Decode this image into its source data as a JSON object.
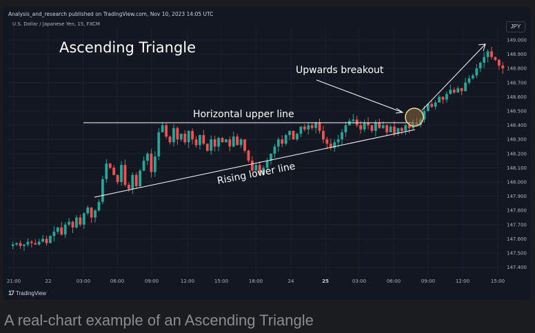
{
  "header": {
    "publish_note": "Analysis_and_research published on TradingView.com, Nov 10, 2023 14:05 UTC",
    "symbol": "U.S. Dollar / Japanese Yen, 15, FXCM",
    "currency": "JPY"
  },
  "footer": {
    "brand": "TradingView"
  },
  "caption": "A real-chart example of an Ascending Triangle",
  "colors": {
    "background": "#131722",
    "up": "#26a69a",
    "down": "#ef5350",
    "grid": "#1e222d",
    "annotation": "#ffffff",
    "breakout_circle_fill": "#8a6a3a",
    "breakout_circle_stroke": "#f0d9a0"
  },
  "chart_data": {
    "type": "candlestick",
    "title": "Ascending Triangle",
    "price_axis": {
      "ticks": [
        "149.000",
        "148.900",
        "148.800",
        "148.700",
        "148.600",
        "148.500",
        "148.400",
        "148.300",
        "148.200",
        "148.100",
        "148.000",
        "147.900",
        "147.800",
        "147.700",
        "147.600",
        "147.500",
        "147.400"
      ],
      "ylim": [
        147.35,
        149.1
      ],
      "side": "right"
    },
    "time_axis": {
      "ticks": [
        {
          "label": "21:00",
          "bold": false
        },
        {
          "label": "22",
          "bold": false
        },
        {
          "label": "03:00",
          "bold": false
        },
        {
          "label": "06:00",
          "bold": false
        },
        {
          "label": "09:00",
          "bold": false
        },
        {
          "label": "12:00",
          "bold": false
        },
        {
          "label": "15:00",
          "bold": false
        },
        {
          "label": "18:00",
          "bold": false
        },
        {
          "label": "24",
          "bold": false
        },
        {
          "label": "25",
          "bold": true
        },
        {
          "label": "03:00",
          "bold": false
        },
        {
          "label": "06:00",
          "bold": false
        },
        {
          "label": "09:00",
          "bold": false
        },
        {
          "label": "12:00",
          "bold": false
        },
        {
          "label": "15:00",
          "bold": false
        }
      ]
    },
    "close_path": [
      147.56,
      147.57,
      147.55,
      147.56,
      147.58,
      147.57,
      147.56,
      147.58,
      147.6,
      147.57,
      147.62,
      147.65,
      147.68,
      147.63,
      147.7,
      147.72,
      147.68,
      147.75,
      147.7,
      147.78,
      147.82,
      147.75,
      147.8,
      147.86,
      148.02,
      148.13,
      148.1,
      148.05,
      148.0,
      148.12,
      147.98,
      147.95,
      148.05,
      147.97,
      148.08,
      148.15,
      148.2,
      148.07,
      148.18,
      148.35,
      148.4,
      148.32,
      148.28,
      148.38,
      148.3,
      148.34,
      148.28,
      148.36,
      148.3,
      148.26,
      148.33,
      148.27,
      148.22,
      148.3,
      148.25,
      148.31,
      148.28,
      148.3,
      148.25,
      148.32,
      148.26,
      148.3,
      148.22,
      148.15,
      148.08,
      148.12,
      148.05,
      148.1,
      148.15,
      148.2,
      148.25,
      148.3,
      148.27,
      148.33,
      148.36,
      148.3,
      148.34,
      148.39,
      148.37,
      148.4,
      148.38,
      148.42,
      148.36,
      148.3,
      148.27,
      148.24,
      148.28,
      148.3,
      148.35,
      148.4,
      148.43,
      148.44,
      148.4,
      148.37,
      148.42,
      148.4,
      148.36,
      148.42,
      148.38,
      148.4,
      148.35,
      148.39,
      148.34,
      148.38,
      148.36,
      148.4,
      148.38,
      148.42,
      148.4,
      148.44,
      148.5,
      148.55,
      148.53,
      148.56,
      148.6,
      148.58,
      148.62,
      148.65,
      148.63,
      148.66,
      148.64,
      148.7,
      148.73,
      148.75,
      148.8,
      148.84,
      148.88,
      148.92,
      148.88,
      148.86,
      148.82,
      148.8
    ],
    "annotations": [
      {
        "type": "text",
        "text": "Ascending Triangle"
      },
      {
        "type": "text",
        "text": "Horizontal upper line"
      },
      {
        "type": "text",
        "text": "Rising lower line"
      },
      {
        "type": "text",
        "text": "Upwards breakout"
      }
    ]
  }
}
